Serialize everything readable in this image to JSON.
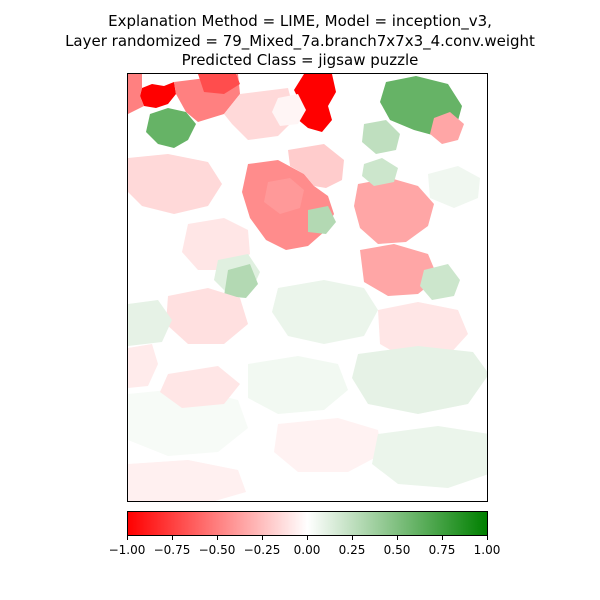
{
  "chart_data": {
    "type": "heatmap",
    "title_lines": [
      "Explanation Method = LIME, Model = inception_v3,",
      "Layer randomized = 79_Mixed_7a.branch7x7x3_4.conv.weight",
      "Predicted Class = jigsaw puzzle"
    ],
    "colorbar": {
      "min": -1.0,
      "max": 1.0,
      "colors": [
        "#ff0000",
        "#ffffff",
        "#008000"
      ],
      "tick_values": [
        -1.0,
        -0.75,
        -0.5,
        -0.25,
        0.0,
        0.25,
        0.5,
        0.75,
        1.0
      ],
      "tick_labels": [
        "−1.00",
        "−0.75",
        "−0.50",
        "−0.25",
        "0.00",
        "0.25",
        "0.50",
        "0.75",
        "1.00"
      ]
    },
    "superpixels": [
      {
        "value": -1.0
      },
      {
        "value": -1.0
      },
      {
        "value": 0.6
      },
      {
        "value": 0.6
      },
      {
        "value": -0.5
      },
      {
        "value": -0.5
      },
      {
        "value": -0.45
      },
      {
        "value": -0.35
      },
      {
        "value": -0.35
      },
      {
        "value": 0.25
      },
      {
        "value": 0.2
      },
      {
        "value": -0.15
      },
      {
        "value": -0.2
      },
      {
        "value": -0.7
      },
      {
        "value": -0.35
      },
      {
        "value": 0.2
      },
      {
        "value": -0.15
      },
      {
        "value": -0.1
      },
      {
        "value": 0.12
      },
      {
        "value": 0.3
      },
      {
        "value": -0.12
      },
      {
        "value": 0.08
      },
      {
        "value": -0.1
      },
      {
        "value": 0.1
      },
      {
        "value": -0.08
      },
      {
        "value": 0.05
      },
      {
        "value": 0.03
      },
      {
        "value": 0.1
      },
      {
        "value": -0.1
      },
      {
        "value": -0.05
      },
      {
        "value": 0.08
      },
      {
        "value": -0.06
      },
      {
        "value": -0.04
      },
      {
        "value": 0.06
      },
      {
        "value": -0.4
      },
      {
        "value": 0.3
      }
    ]
  }
}
